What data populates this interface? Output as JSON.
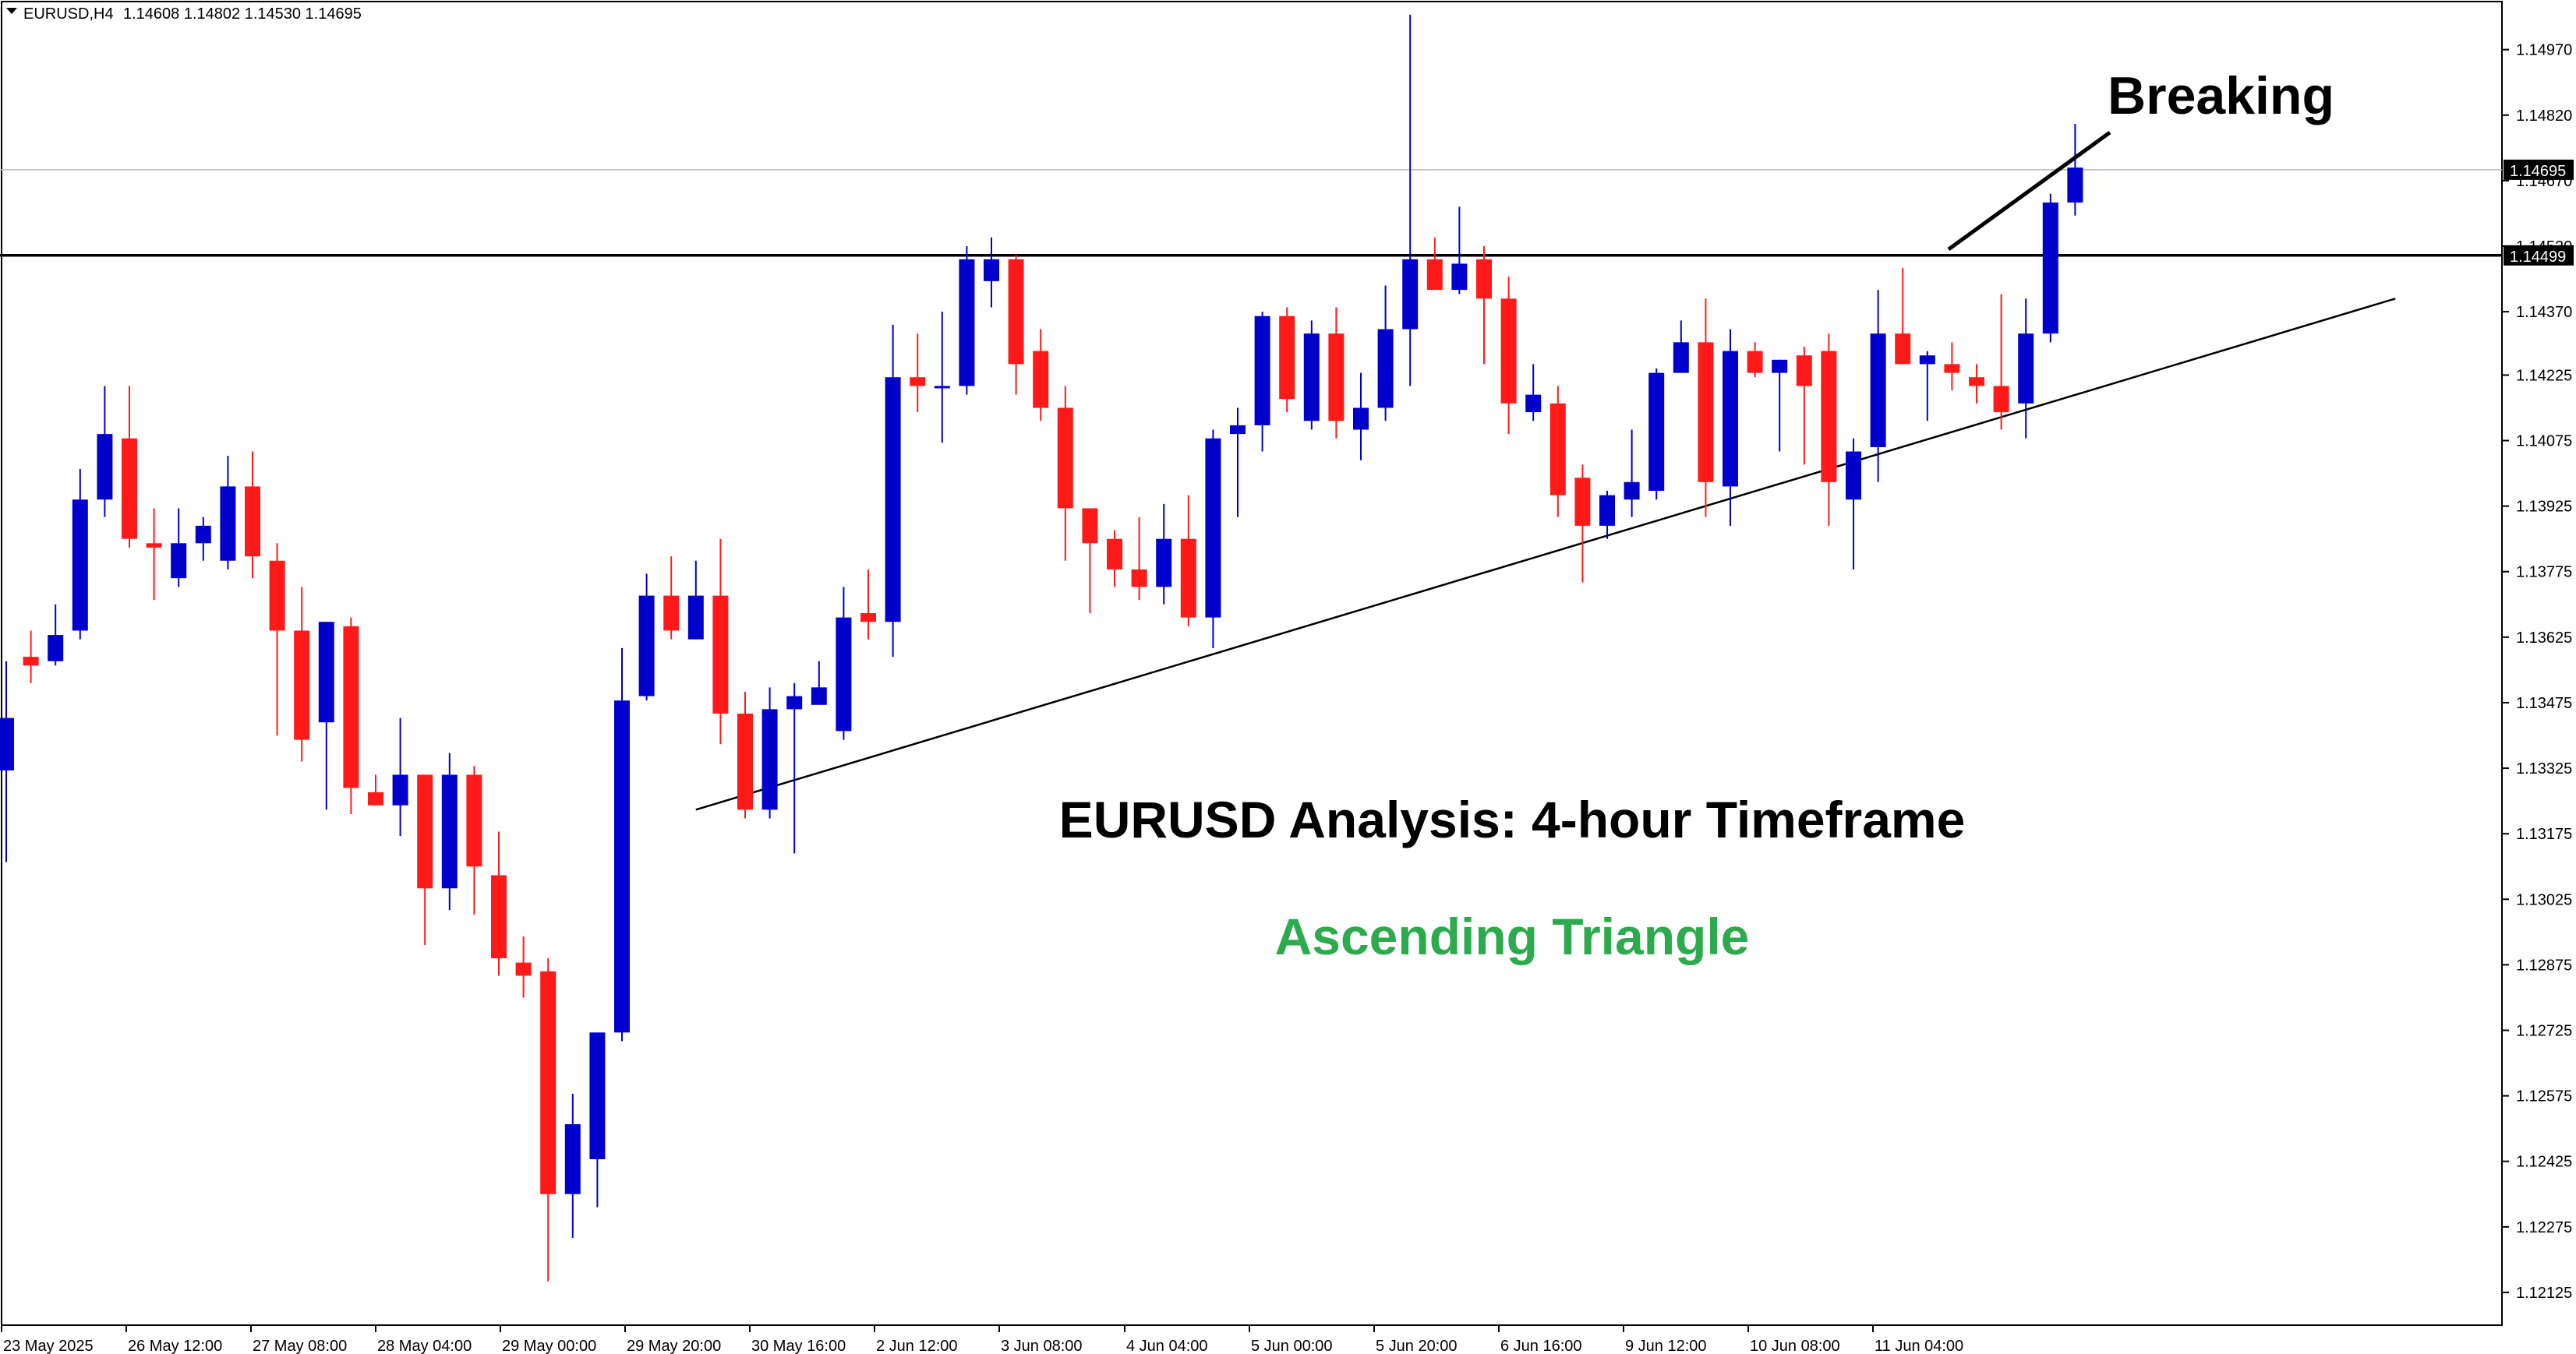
{
  "header": {
    "symbol": "EURUSD,H4",
    "ohlc": "1.14608 1.14802 1.14530 1.14695"
  },
  "annotations": {
    "breaking_label": "Breaking",
    "analysis_title": "EURUSD Analysis: 4-hour Timeframe",
    "pattern_label": "Ascending Triangle",
    "pattern_color": "#2eaa4e",
    "title_color": "#000000"
  },
  "chart_data": {
    "type": "candlestick",
    "ylim": [
      1.1205,
      1.1508
    ],
    "y_ticks": [
      "1.14970",
      "1.14820",
      "1.14670",
      "1.14520",
      "1.14370",
      "1.14225",
      "1.14075",
      "1.13925",
      "1.13775",
      "1.13625",
      "1.13475",
      "1.13325",
      "1.13175",
      "1.13025",
      "1.12875",
      "1.12725",
      "1.12575",
      "1.12425",
      "1.12275",
      "1.12125"
    ],
    "x_ticks": [
      "23 May 2025",
      "26 May 12:00",
      "27 May 08:00",
      "28 May 04:00",
      "29 May 00:00",
      "29 May 20:00",
      "30 May 16:00",
      "2 Jun 12:00",
      "3 Jun 08:00",
      "4 Jun 04:00",
      "5 Jun 00:00",
      "5 Jun 20:00",
      "6 Jun 16:00",
      "9 Jun 12:00",
      "10 Jun 08:00",
      "11 Jun 04:00"
    ],
    "price_labels": {
      "current": "1.14695",
      "resistance": "1.14499"
    },
    "resistance_level": 1.14499,
    "current_level": 1.14695,
    "trendline": {
      "from": [
        28,
        1.1323
      ],
      "to": [
        97,
        1.144
      ]
    },
    "colors": {
      "bull": "#0000cc",
      "bear": "#ff1a1a"
    },
    "candles": [
      [
        1.1332,
        1.1344,
        1.1311,
        1.1357
      ],
      [
        1.1358,
        1.1356,
        1.1352,
        1.1364
      ],
      [
        1.1357,
        1.1363,
        1.1356,
        1.137
      ],
      [
        1.1364,
        1.1394,
        1.1362,
        1.1401
      ],
      [
        1.1394,
        1.1409,
        1.139,
        1.142
      ],
      [
        1.1408,
        1.1385,
        1.1383,
        1.142
      ],
      [
        1.1384,
        1.1383,
        1.1371,
        1.1392
      ],
      [
        1.1376,
        1.1384,
        1.1374,
        1.1392
      ],
      [
        1.1384,
        1.1388,
        1.138,
        1.139
      ],
      [
        1.138,
        1.1397,
        1.1378,
        1.1404
      ],
      [
        1.1397,
        1.1381,
        1.1376,
        1.1405
      ],
      [
        1.138,
        1.1364,
        1.134,
        1.1384
      ],
      [
        1.1364,
        1.1339,
        1.1334,
        1.1374
      ],
      [
        1.1343,
        1.1366,
        1.1323,
        1.1366
      ],
      [
        1.1365,
        1.1328,
        1.1322,
        1.1367
      ],
      [
        1.1327,
        1.1324,
        1.1325,
        1.1331
      ],
      [
        1.1324,
        1.1331,
        1.1317,
        1.1344
      ],
      [
        1.1331,
        1.1305,
        1.1292,
        1.1331
      ],
      [
        1.1305,
        1.1331,
        1.13,
        1.1336
      ],
      [
        1.1331,
        1.131,
        1.1299,
        1.1333
      ],
      [
        1.1308,
        1.1289,
        1.1285,
        1.1318
      ],
      [
        1.1288,
        1.1285,
        1.128,
        1.1294
      ],
      [
        1.1286,
        1.1235,
        1.1215,
        1.1289
      ],
      [
        1.1235,
        1.1251,
        1.1225,
        1.1258
      ],
      [
        1.1243,
        1.1272,
        1.1232,
        1.1272
      ],
      [
        1.1272,
        1.1348,
        1.127,
        1.136
      ],
      [
        1.1349,
        1.1372,
        1.1348,
        1.1377
      ],
      [
        1.1372,
        1.1364,
        1.1362,
        1.1381
      ],
      [
        1.1362,
        1.1372,
        1.1362,
        1.138
      ],
      [
        1.1372,
        1.1345,
        1.1338,
        1.1385
      ],
      [
        1.1345,
        1.1323,
        1.1321,
        1.135
      ],
      [
        1.1323,
        1.1346,
        1.1321,
        1.1351
      ],
      [
        1.1346,
        1.1349,
        1.1313,
        1.1352
      ],
      [
        1.1347,
        1.1351,
        1.1348,
        1.1357
      ],
      [
        1.1341,
        1.1367,
        1.1339,
        1.1374
      ],
      [
        1.1368,
        1.1366,
        1.1362,
        1.1378
      ],
      [
        1.1366,
        1.1422,
        1.1358,
        1.1434
      ],
      [
        1.1422,
        1.142,
        1.1414,
        1.1432
      ],
      [
        1.142,
        1.142,
        1.1407,
        1.1437
      ],
      [
        1.142,
        1.1449,
        1.1418,
        1.1452
      ],
      [
        1.1444,
        1.1449,
        1.1438,
        1.1454
      ],
      [
        1.1449,
        1.1425,
        1.1418,
        1.145
      ],
      [
        1.1428,
        1.1415,
        1.1412,
        1.1433
      ],
      [
        1.1415,
        1.1392,
        1.138,
        1.142
      ],
      [
        1.1392,
        1.1384,
        1.1368,
        1.1392
      ],
      [
        1.1385,
        1.1378,
        1.1374,
        1.1387
      ],
      [
        1.1378,
        1.1374,
        1.1371,
        1.139
      ],
      [
        1.1374,
        1.1385,
        1.137,
        1.1393
      ],
      [
        1.1385,
        1.1367,
        1.1365,
        1.1395
      ],
      [
        1.1367,
        1.1408,
        1.136,
        1.141
      ],
      [
        1.1409,
        1.1411,
        1.139,
        1.1415
      ],
      [
        1.1411,
        1.1436,
        1.1405,
        1.1437
      ],
      [
        1.1436,
        1.1417,
        1.1414,
        1.1438
      ],
      [
        1.1412,
        1.1432,
        1.141,
        1.1435
      ],
      [
        1.1432,
        1.1412,
        1.1408,
        1.1438
      ],
      [
        1.141,
        1.1415,
        1.1403,
        1.1423
      ],
      [
        1.1415,
        1.1433,
        1.1412,
        1.1443
      ],
      [
        1.1433,
        1.1449,
        1.142,
        1.1505
      ],
      [
        1.1449,
        1.1442,
        1.1443,
        1.1454
      ],
      [
        1.1442,
        1.1448,
        1.1441,
        1.1461
      ],
      [
        1.1449,
        1.144,
        1.1425,
        1.1452
      ],
      [
        1.144,
        1.1416,
        1.1409,
        1.1445
      ],
      [
        1.1414,
        1.1418,
        1.1412,
        1.1425
      ],
      [
        1.1416,
        1.1395,
        1.139,
        1.142
      ],
      [
        1.1399,
        1.1388,
        1.1375,
        1.1402
      ],
      [
        1.1388,
        1.1395,
        1.1385,
        1.1396
      ],
      [
        1.1394,
        1.1398,
        1.139,
        1.141
      ],
      [
        1.1396,
        1.1423,
        1.1394,
        1.1424
      ],
      [
        1.1423,
        1.143,
        1.1423,
        1.1435
      ],
      [
        1.143,
        1.1398,
        1.139,
        1.144
      ],
      [
        1.1397,
        1.1428,
        1.1388,
        1.1433
      ],
      [
        1.1428,
        1.1423,
        1.1422,
        1.143
      ],
      [
        1.1423,
        1.1426,
        1.1405,
        1.1426
      ],
      [
        1.1427,
        1.142,
        1.1402,
        1.1429
      ],
      [
        1.1428,
        1.1398,
        1.1388,
        1.1432
      ],
      [
        1.1394,
        1.1405,
        1.1378,
        1.1408
      ],
      [
        1.1406,
        1.1432,
        1.1398,
        1.1442
      ],
      [
        1.1432,
        1.1425,
        1.1426,
        1.1447
      ],
      [
        1.1425,
        1.1427,
        1.1412,
        1.1428
      ],
      [
        1.1425,
        1.1423,
        1.1419,
        1.143
      ],
      [
        1.1422,
        1.142,
        1.1416,
        1.1425
      ],
      [
        1.142,
        1.1414,
        1.141,
        1.1441
      ],
      [
        1.1416,
        1.1432,
        1.1408,
        1.144
      ],
      [
        1.1432,
        1.1462,
        1.143,
        1.1464
      ],
      [
        1.1462,
        1.147,
        1.1459,
        1.148
      ]
    ]
  }
}
